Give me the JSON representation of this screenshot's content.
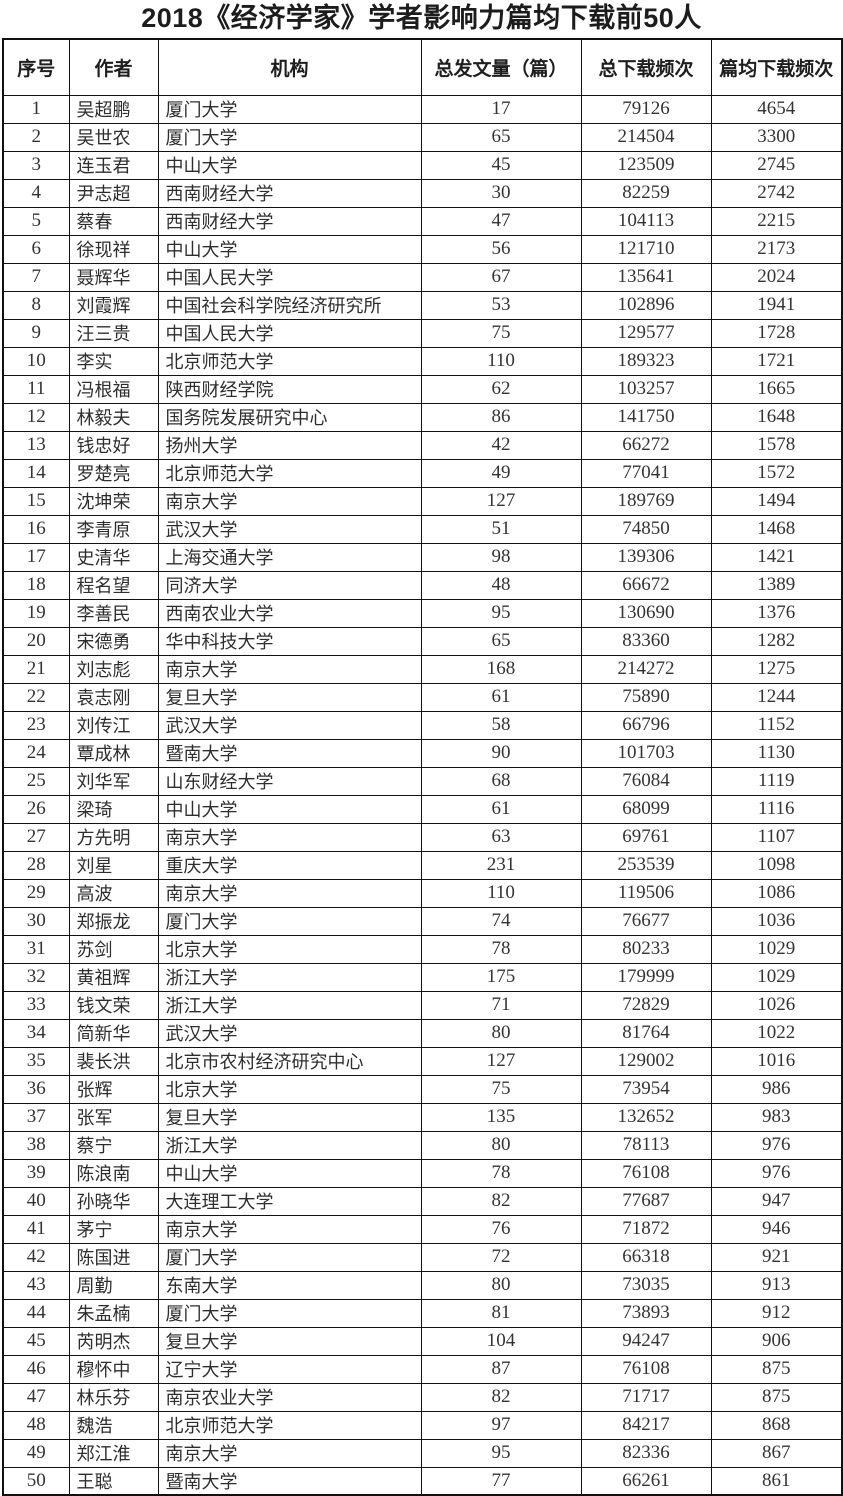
{
  "title": "2018《经济学家》学者影响力篇均下载前50人",
  "table": {
    "headers": [
      "序号",
      "作者",
      "机构",
      "总发文量（篇）",
      "总下载频次",
      "篇均下载频次"
    ],
    "rows": [
      [
        1,
        "吴超鹏",
        "厦门大学",
        17,
        79126,
        4654
      ],
      [
        2,
        "吴世农",
        "厦门大学",
        65,
        214504,
        3300
      ],
      [
        3,
        "连玉君",
        "中山大学",
        45,
        123509,
        2745
      ],
      [
        4,
        "尹志超",
        "西南财经大学",
        30,
        82259,
        2742
      ],
      [
        5,
        "蔡春",
        "西南财经大学",
        47,
        104113,
        2215
      ],
      [
        6,
        "徐现祥",
        "中山大学",
        56,
        121710,
        2173
      ],
      [
        7,
        "聂辉华",
        "中国人民大学",
        67,
        135641,
        2024
      ],
      [
        8,
        "刘霞辉",
        "中国社会科学院经济研究所",
        53,
        102896,
        1941
      ],
      [
        9,
        "汪三贵",
        "中国人民大学",
        75,
        129577,
        1728
      ],
      [
        10,
        "李实",
        "北京师范大学",
        110,
        189323,
        1721
      ],
      [
        11,
        "冯根福",
        "陕西财经学院",
        62,
        103257,
        1665
      ],
      [
        12,
        "林毅夫",
        "国务院发展研究中心",
        86,
        141750,
        1648
      ],
      [
        13,
        "钱忠好",
        "扬州大学",
        42,
        66272,
        1578
      ],
      [
        14,
        "罗楚亮",
        "北京师范大学",
        49,
        77041,
        1572
      ],
      [
        15,
        "沈坤荣",
        "南京大学",
        127,
        189769,
        1494
      ],
      [
        16,
        "李青原",
        "武汉大学",
        51,
        74850,
        1468
      ],
      [
        17,
        "史清华",
        "上海交通大学",
        98,
        139306,
        1421
      ],
      [
        18,
        "程名望",
        "同济大学",
        48,
        66672,
        1389
      ],
      [
        19,
        "李善民",
        "西南农业大学",
        95,
        130690,
        1376
      ],
      [
        20,
        "宋德勇",
        "华中科技大学",
        65,
        83360,
        1282
      ],
      [
        21,
        "刘志彪",
        "南京大学",
        168,
        214272,
        1275
      ],
      [
        22,
        "袁志刚",
        "复旦大学",
        61,
        75890,
        1244
      ],
      [
        23,
        "刘传江",
        "武汉大学",
        58,
        66796,
        1152
      ],
      [
        24,
        "覃成林",
        "暨南大学",
        90,
        101703,
        1130
      ],
      [
        25,
        "刘华军",
        "山东财经大学",
        68,
        76084,
        1119
      ],
      [
        26,
        "梁琦",
        "中山大学",
        61,
        68099,
        1116
      ],
      [
        27,
        "方先明",
        "南京大学",
        63,
        69761,
        1107
      ],
      [
        28,
        "刘星",
        "重庆大学",
        231,
        253539,
        1098
      ],
      [
        29,
        "高波",
        "南京大学",
        110,
        119506,
        1086
      ],
      [
        30,
        "郑振龙",
        "厦门大学",
        74,
        76677,
        1036
      ],
      [
        31,
        "苏剑",
        "北京大学",
        78,
        80233,
        1029
      ],
      [
        32,
        "黄祖辉",
        "浙江大学",
        175,
        179999,
        1029
      ],
      [
        33,
        "钱文荣",
        "浙江大学",
        71,
        72829,
        1026
      ],
      [
        34,
        "简新华",
        "武汉大学",
        80,
        81764,
        1022
      ],
      [
        35,
        "裴长洪",
        "北京市农村经济研究中心",
        127,
        129002,
        1016
      ],
      [
        36,
        "张辉",
        "北京大学",
        75,
        73954,
        986
      ],
      [
        37,
        "张军",
        "复旦大学",
        135,
        132652,
        983
      ],
      [
        38,
        "蔡宁",
        "浙江大学",
        80,
        78113,
        976
      ],
      [
        39,
        "陈浪南",
        "中山大学",
        78,
        76108,
        976
      ],
      [
        40,
        "孙晓华",
        "大连理工大学",
        82,
        77687,
        947
      ],
      [
        41,
        "茅宁",
        "南京大学",
        76,
        71872,
        946
      ],
      [
        42,
        "陈国进",
        "厦门大学",
        72,
        66318,
        921
      ],
      [
        43,
        "周勤",
        "东南大学",
        80,
        73035,
        913
      ],
      [
        44,
        "朱孟楠",
        "厦门大学",
        81,
        73893,
        912
      ],
      [
        45,
        "芮明杰",
        "复旦大学",
        104,
        94247,
        906
      ],
      [
        46,
        "穆怀中",
        "辽宁大学",
        87,
        76108,
        875
      ],
      [
        47,
        "林乐芬",
        "南京农业大学",
        82,
        71717,
        875
      ],
      [
        48,
        "魏浩",
        "北京师范大学",
        97,
        84217,
        868
      ],
      [
        49,
        "郑江淮",
        "南京大学",
        95,
        82336,
        867
      ],
      [
        50,
        "王聪",
        "暨南大学",
        77,
        66261,
        861
      ]
    ],
    "cell_names": [
      "rank-cell",
      "author-cell",
      "institution-cell",
      "articles-count-cell",
      "total-downloads-cell",
      "avg-downloads-cell"
    ]
  }
}
